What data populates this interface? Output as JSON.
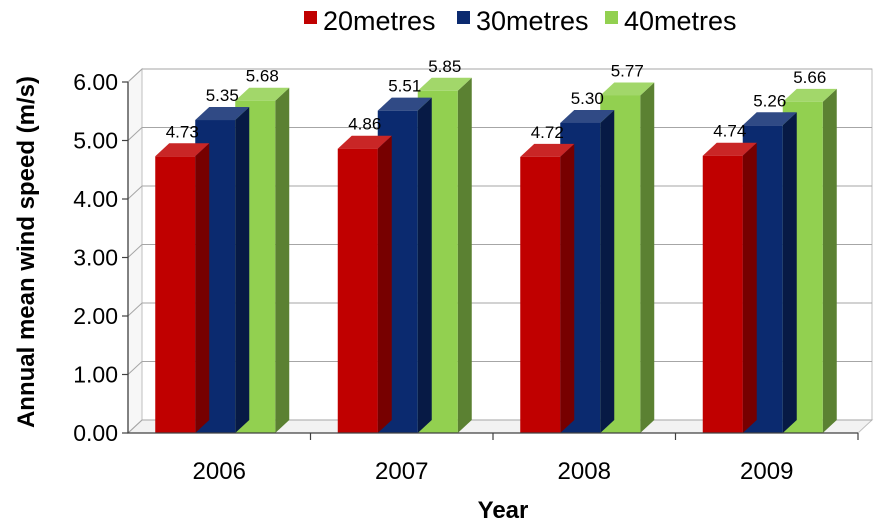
{
  "chart_data": {
    "type": "bar",
    "title": "",
    "xlabel": "Year",
    "ylabel": "Annual mean wind speed (m/s)",
    "categories": [
      "2006",
      "2007",
      "2008",
      "2009"
    ],
    "series": [
      {
        "name": "20metres",
        "color": "#c00000",
        "values": [
          4.73,
          4.86,
          4.72,
          4.74
        ],
        "labels": [
          "4.73",
          "4.86",
          "4.72",
          "4.74"
        ]
      },
      {
        "name": "30metres",
        "color": "#0b2a6f",
        "values": [
          5.35,
          5.51,
          5.3,
          5.26
        ],
        "labels": [
          "5.35",
          "5.51",
          "5.30",
          "5.26"
        ]
      },
      {
        "name": "40metres",
        "color": "#92d050",
        "values": [
          5.68,
          5.85,
          5.77,
          5.66
        ],
        "labels": [
          "5.68",
          "5.85",
          "5.77",
          "5.66"
        ]
      }
    ],
    "ylim": [
      0,
      6
    ],
    "yticks": [
      "0.00",
      "1.00",
      "2.00",
      "3.00",
      "4.00",
      "5.00",
      "6.00"
    ],
    "grid": true,
    "legend_position": "top"
  }
}
